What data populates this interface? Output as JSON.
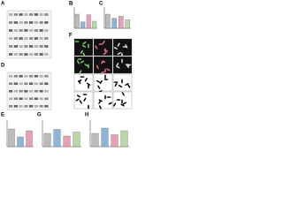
{
  "labels": [
    "A",
    "B",
    "C",
    "D",
    "E",
    "F",
    "G",
    "H"
  ],
  "charts": [
    {
      "values": [
        1,
        0.45,
        0.95,
        0.5
      ],
      "colors": [
        "#bbbbbb",
        "#8fb4d9",
        "#e9a0b4",
        "#b8d8a8"
      ],
      "ylim": [
        0,
        1.5
      ]
    },
    {
      "values": [
        1,
        0.7,
        0.85,
        0.6
      ],
      "colors": [
        "#bbbbbb",
        "#8fb4d9",
        "#e9a0b4",
        "#b8d8a8"
      ],
      "ylim": [
        0,
        1.5
      ]
    },
    {
      "values": [
        1,
        0.55,
        0.9
      ],
      "colors": [
        "#bbbbbb",
        "#8fb4d9",
        "#e9a0b4"
      ],
      "ylim": [
        0,
        1.5
      ]
    },
    {
      "values": [
        1,
        1.3,
        0.8,
        1.1
      ],
      "colors": [
        "#bbbbbb",
        "#8fb4d9",
        "#e9a0b4",
        "#b8d8a8"
      ],
      "ylim": [
        0,
        2
      ]
    },
    {
      "values": [
        1,
        1.4,
        0.9,
        1.2
      ],
      "colors": [
        "#bbbbbb",
        "#8fb4d9",
        "#e9a0b4",
        "#b8d8a8"
      ],
      "ylim": [
        0,
        2
      ]
    }
  ]
}
